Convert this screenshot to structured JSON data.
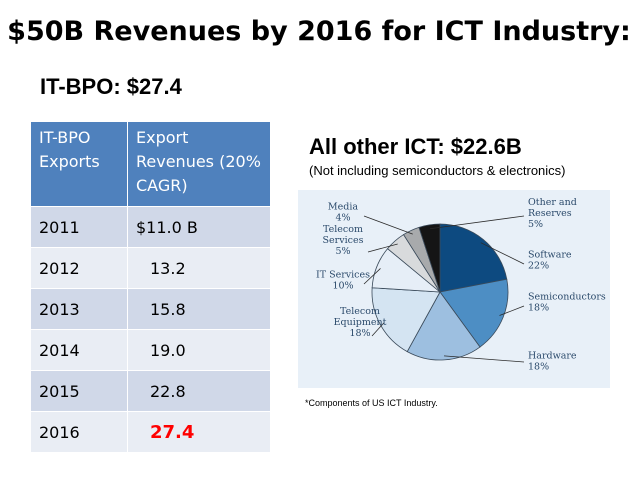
{
  "title": "$50B Revenues by 2016 for ICT Industry:",
  "subtitle": "IT-BPO: $27.4",
  "table": {
    "headers": [
      "IT-BPO Exports",
      "Export Revenues (20%  CAGR)"
    ],
    "rows": [
      {
        "year": "2011",
        "value": "$11.0 B"
      },
      {
        "year": "2012",
        "value": "13.2"
      },
      {
        "year": "2013",
        "value": "15.8"
      },
      {
        "year": "2014",
        "value": "19.0"
      },
      {
        "year": "2015",
        "value": "22.8"
      },
      {
        "year": "2016",
        "value": "27.4"
      }
    ],
    "highlight_color": "#ff0000",
    "header_color": "#4f81bd"
  },
  "ict": {
    "title": "All other ICT: $22.6B",
    "subtitle": "(Not including semiconductors & electronics)",
    "footnote": "*Components of US ICT Industry."
  },
  "chart_data": {
    "type": "pie",
    "slices": [
      {
        "name": "Software",
        "value": 22,
        "color": "#0d4a80",
        "label_lines": [
          "Software",
          "22%"
        ]
      },
      {
        "name": "Semiconductors",
        "value": 18,
        "color": "#4d8ec4",
        "label_lines": [
          "Semiconductors",
          "18%"
        ]
      },
      {
        "name": "Hardware",
        "value": 18,
        "color": "#9dbfe0",
        "label_lines": [
          "Hardware",
          "18%"
        ]
      },
      {
        "name": "Telecom Equipment",
        "value": 18,
        "color": "#d4e4f2",
        "label_lines": [
          "Telecom",
          "Equipment",
          "18%"
        ]
      },
      {
        "name": "IT Services",
        "value": 10,
        "color": "#e6eef7",
        "label_lines": [
          "IT Services",
          "10%"
        ]
      },
      {
        "name": "Telecom Services",
        "value": 5,
        "color": "#d8dadc",
        "label_lines": [
          "Telecom",
          "Services",
          "5%"
        ]
      },
      {
        "name": "Media",
        "value": 4,
        "color": "#a8aaac",
        "label_lines": [
          "Media",
          "4%"
        ]
      },
      {
        "name": "Other and Reserves",
        "value": 5,
        "color": "#151515",
        "label_lines": [
          "Other and",
          "Reserves",
          "5%"
        ]
      }
    ]
  }
}
